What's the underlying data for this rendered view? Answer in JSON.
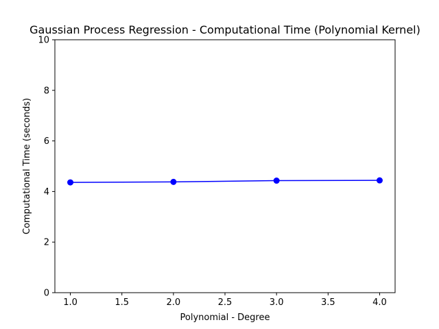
{
  "chart_data": {
    "type": "line",
    "title": "Gaussian Process Regression - Computational Time (Polynomial Kernel)",
    "xlabel": "Polynomial - Degree",
    "ylabel": "Computational Time (seconds)",
    "x": [
      1.0,
      2.0,
      3.0,
      4.0
    ],
    "series": [
      {
        "values": [
          4.36,
          4.38,
          4.43,
          4.44
        ],
        "color": "#0000ff",
        "marker": "circle"
      }
    ],
    "xlim": [
      0.85,
      4.15
    ],
    "ylim": [
      0,
      10
    ],
    "xticks": [
      "1.0",
      "1.5",
      "2.0",
      "2.5",
      "3.0",
      "3.5",
      "4.0"
    ],
    "xtick_values": [
      1.0,
      1.5,
      2.0,
      2.5,
      3.0,
      3.5,
      4.0
    ],
    "yticks": [
      "0",
      "2",
      "4",
      "6",
      "8",
      "10"
    ],
    "ytick_values": [
      0,
      2,
      4,
      6,
      8,
      10
    ],
    "grid": false,
    "legend": "none"
  }
}
